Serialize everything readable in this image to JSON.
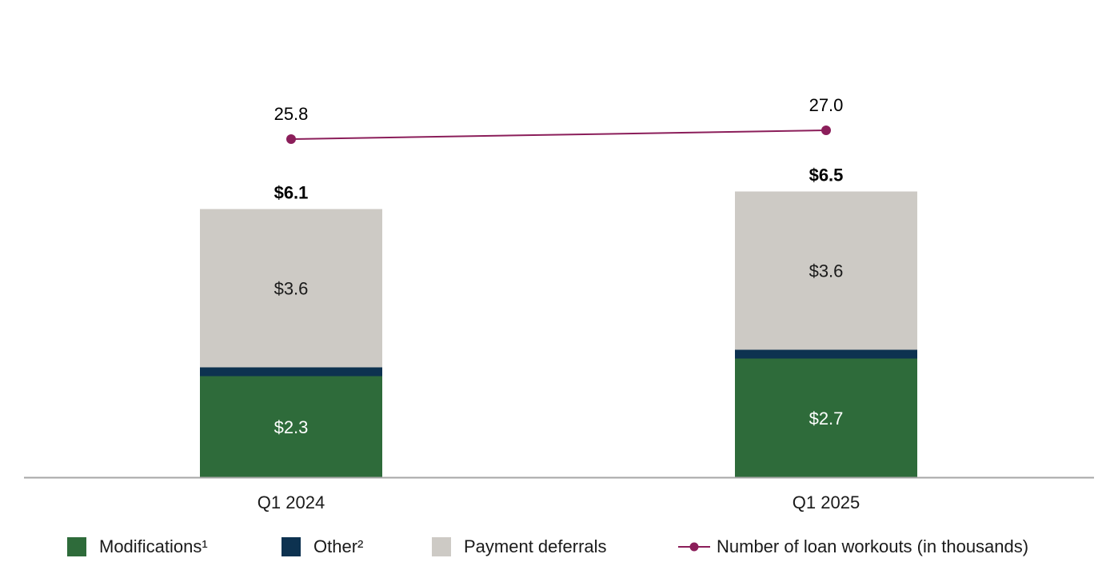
{
  "chart_data": {
    "type": "bar",
    "stacked": true,
    "categories": [
      "Q1 2024",
      "Q1 2025"
    ],
    "series": [
      {
        "name": "Modifications¹",
        "values": [
          2.3,
          2.7
        ],
        "labels": [
          "$2.3",
          "$2.7"
        ],
        "color": "#2e6b3a",
        "label_color": "#ffffff"
      },
      {
        "name": "Other²",
        "values": [
          0.2,
          0.2
        ],
        "labels": [
          "",
          ""
        ],
        "color": "#0d3250",
        "label_color": "#ffffff"
      },
      {
        "name": "Payment deferrals",
        "values": [
          3.6,
          3.6
        ],
        "labels": [
          "$3.6",
          "$3.6"
        ],
        "color": "#cdcac5",
        "label_color": "#1a1a1a"
      }
    ],
    "totals": {
      "values": [
        6.1,
        6.5
      ],
      "labels": [
        "$6.1",
        "$6.5"
      ]
    },
    "line_series": {
      "name": "Number of loan workouts (in thousands)",
      "values": [
        25.8,
        27.0
      ],
      "labels": [
        "25.8",
        "27.0"
      ],
      "color": "#8b1e5a"
    },
    "legend_position": "bottom",
    "grid": false
  }
}
